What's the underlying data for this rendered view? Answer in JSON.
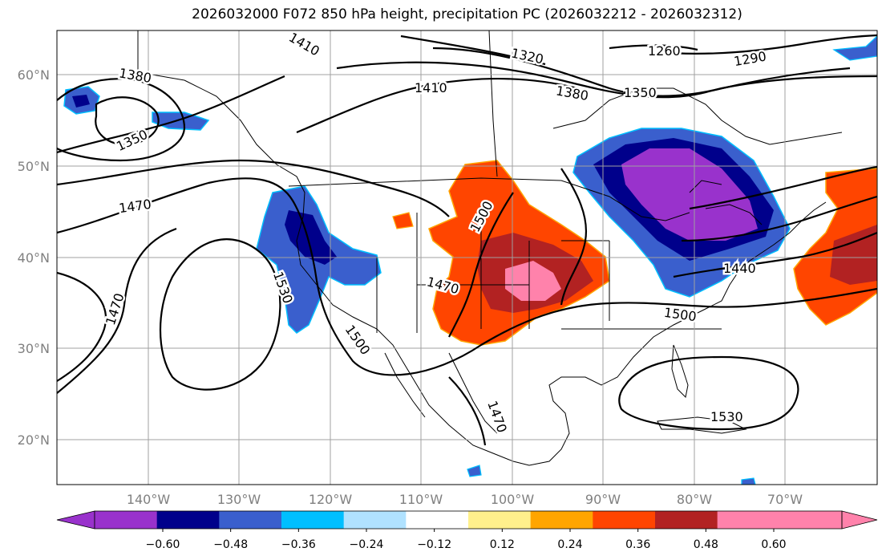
{
  "title": "2026032000 F072 850 hPa height, precipitation PC (2026032212 - 2026032312)",
  "map": {
    "lat_labels": [
      "60°N",
      "50°N",
      "40°N",
      "30°N",
      "20°N"
    ],
    "lon_labels": [
      "140°W",
      "130°W",
      "120°W",
      "110°W",
      "100°W",
      "90°W",
      "80°W",
      "70°W"
    ],
    "contour_labels": [
      "1410",
      "1320",
      "1260",
      "1290",
      "1380",
      "1410",
      "1380",
      "1350",
      "1350",
      "1470",
      "1500",
      "1470",
      "1530",
      "1470",
      "1500",
      "1440",
      "1500",
      "1470",
      "1530"
    ]
  },
  "colorbar": {
    "colors": [
      "#9932cc",
      "#00008b",
      "#3a5fcd",
      "#00bfff",
      "#b0e2ff",
      "#ffffff",
      "#fff08c",
      "#ffa500",
      "#ff4500",
      "#b22222",
      "#ff82ab",
      "#ff82ab"
    ],
    "extend_low_color": "#9932cc",
    "labels": [
      "−0.60",
      "−0.48",
      "−0.36",
      "−0.24",
      "−0.12",
      "0.12",
      "0.24",
      "0.36",
      "0.48",
      "0.60"
    ]
  }
}
